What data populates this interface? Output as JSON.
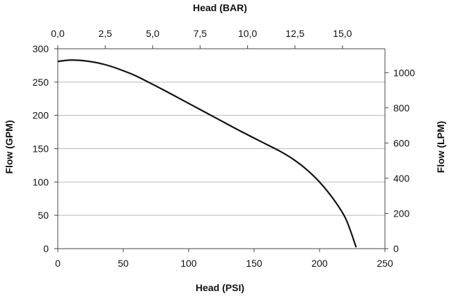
{
  "chart_data": {
    "type": "line",
    "xlabel": "Head (PSI)",
    "ylabel": "Flow (GPM)",
    "x2label": "Head (BAR)",
    "y2label": "Flow (LPM)",
    "xlim": [
      0,
      250
    ],
    "ylim": [
      0,
      300
    ],
    "x2lim": [
      0,
      17.24
    ],
    "y2lim": [
      0,
      1135.6
    ],
    "xticks": [
      "0",
      "50",
      "100",
      "150",
      "200",
      "250"
    ],
    "yticks": [
      "0",
      "50",
      "100",
      "150",
      "200",
      "250",
      "300"
    ],
    "x2ticks": [
      "0,0",
      "2,5",
      "5,0",
      "7,5",
      "10,0",
      "12,5",
      "15,0"
    ],
    "y2ticks": [
      "0",
      "200",
      "400",
      "600",
      "800",
      "1000"
    ],
    "grid": "horizontal",
    "series": [
      {
        "x": [
          0,
          10,
          20,
          30,
          40,
          50,
          60,
          80,
          100,
          120,
          140,
          160,
          170,
          180,
          190,
          200,
          210,
          220,
          228
        ],
        "y": [
          281,
          283,
          282,
          279,
          274,
          267,
          259,
          239,
          218,
          197,
          176,
          156,
          146,
          134,
          119,
          100,
          76,
          45,
          2
        ]
      }
    ]
  }
}
